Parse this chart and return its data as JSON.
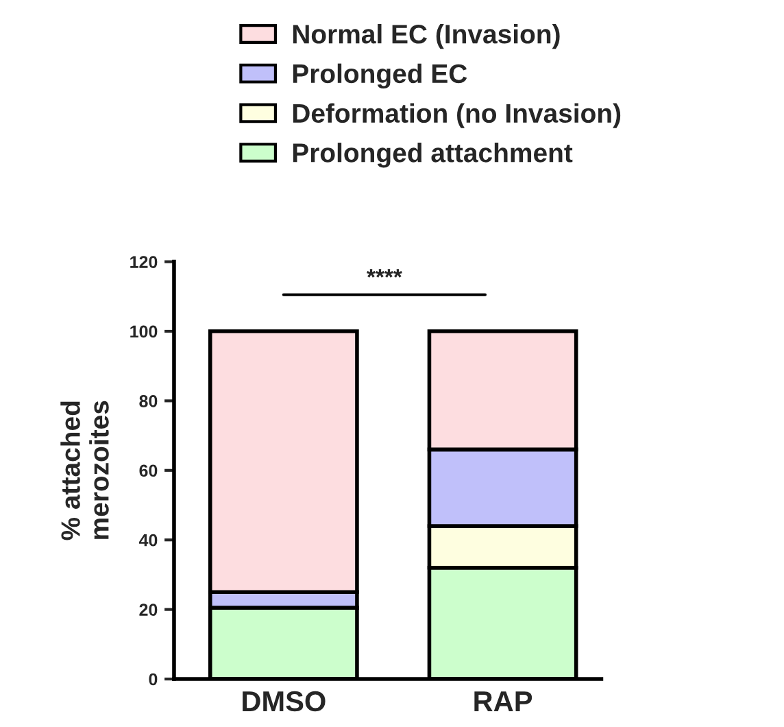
{
  "chart_data": {
    "type": "bar",
    "stacked": true,
    "ylabel": "% attached\nmerozoites",
    "categories": [
      "DMSO",
      "RAP"
    ],
    "series": [
      {
        "name": "Prolonged attachment",
        "color": "#ccfecc",
        "values": [
          20.5,
          32
        ]
      },
      {
        "name": "Deformation (no Invasion)",
        "color": "#fefee0",
        "values": [
          0,
          12
        ]
      },
      {
        "name": "Prolonged EC",
        "color": "#c0c0fa",
        "values": [
          4.5,
          22
        ]
      },
      {
        "name": "Normal EC (Invasion)",
        "color": "#fddde0",
        "values": [
          75,
          34
        ]
      }
    ],
    "ylim": [
      0,
      120
    ],
    "yticks": [
      0,
      20,
      40,
      60,
      80,
      100,
      120
    ],
    "grid": false,
    "legend": "top",
    "annotations": [
      "****"
    ]
  }
}
